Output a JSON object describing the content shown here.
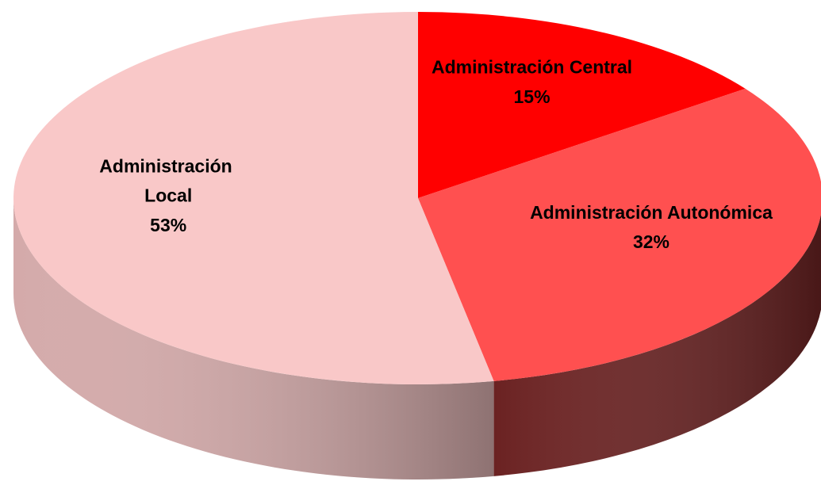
{
  "chart_data": {
    "type": "pie",
    "categories": [
      "Administración Central",
      "Administración Autonómica",
      "Administración Local"
    ],
    "values": [
      15,
      32,
      53
    ],
    "value_labels": [
      "15%",
      "32%",
      "53%"
    ],
    "colors": [
      "#ff0000",
      "#ff5050",
      "#f9c8c8"
    ]
  }
}
